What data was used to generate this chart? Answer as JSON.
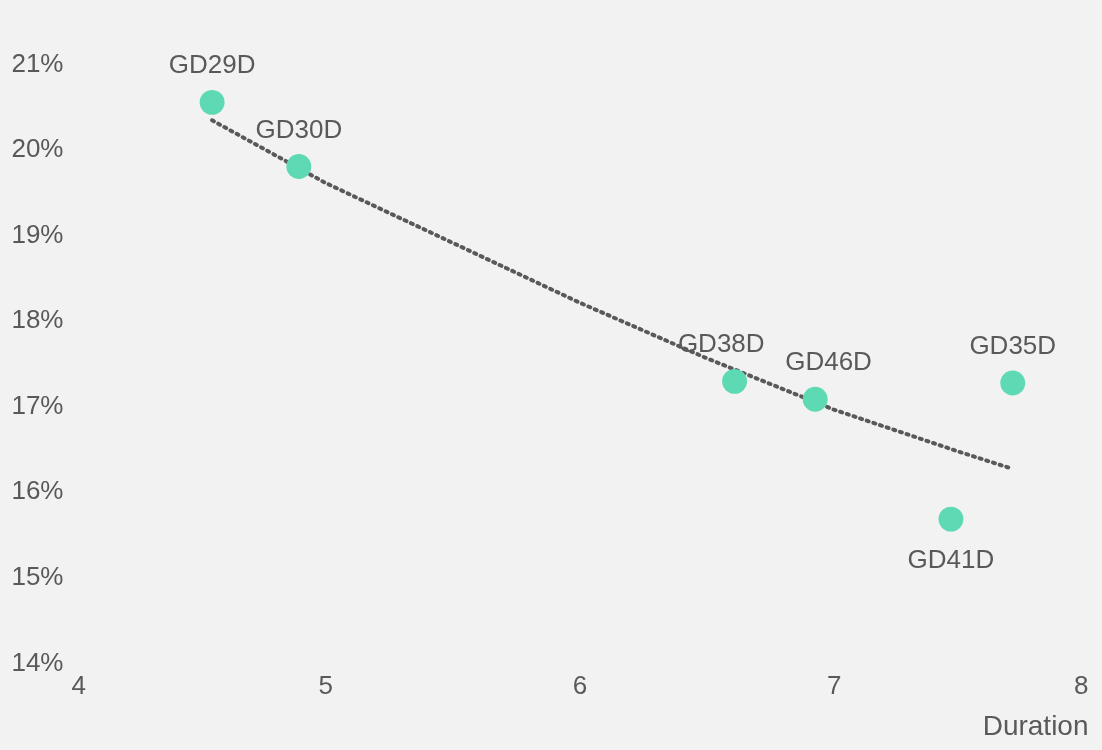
{
  "chart_data": {
    "type": "scatter",
    "xlabel": "Duration",
    "marker": "circle",
    "grid": false,
    "xlim": [
      4,
      8
    ],
    "xticks": [
      4,
      5,
      6,
      7,
      8
    ],
    "ylim": [
      14,
      21
    ],
    "yticks": [
      {
        "value": 14,
        "label": "14%"
      },
      {
        "value": 15,
        "label": "15%"
      },
      {
        "value": 16,
        "label": "16%"
      },
      {
        "value": 17,
        "label": "17%"
      },
      {
        "value": 18,
        "label": "18%"
      },
      {
        "value": 19,
        "label": "19%"
      },
      {
        "value": 20,
        "label": "20%"
      },
      {
        "value": 21,
        "label": "21%"
      }
    ],
    "series": [
      {
        "color": "#5dd9b3",
        "x": [
          4.555,
          4.896,
          6.61,
          6.927,
          7.704,
          7.461
        ],
        "values": [
          20.54,
          19.79,
          17.28,
          17.07,
          17.26,
          15.67
        ]
      },
      {
        "type": "line",
        "color": "#595959",
        "line_style": "dotted",
        "marker": "none",
        "x": [
          4.555,
          5,
          5.5,
          6,
          6.5,
          7,
          7.5,
          7.7
        ],
        "values": [
          20.33,
          19.6,
          18.9,
          18.2,
          17.55,
          16.95,
          16.45,
          16.26
        ]
      }
    ],
    "annotations": [
      {
        "text": "GD29D",
        "x": 4.555,
        "y": 20.54
      },
      {
        "text": "GD30D",
        "x": 4.896,
        "y": 19.79
      },
      {
        "text": "GD38D",
        "x": 6.61,
        "y": 17.28
      },
      {
        "text": "GD46D",
        "x": 6.927,
        "y": 17.07
      },
      {
        "text": "GD35D",
        "x": 7.704,
        "y": 17.26
      },
      {
        "text": "GD41D",
        "x": 7.461,
        "y": 15.67
      }
    ]
  }
}
